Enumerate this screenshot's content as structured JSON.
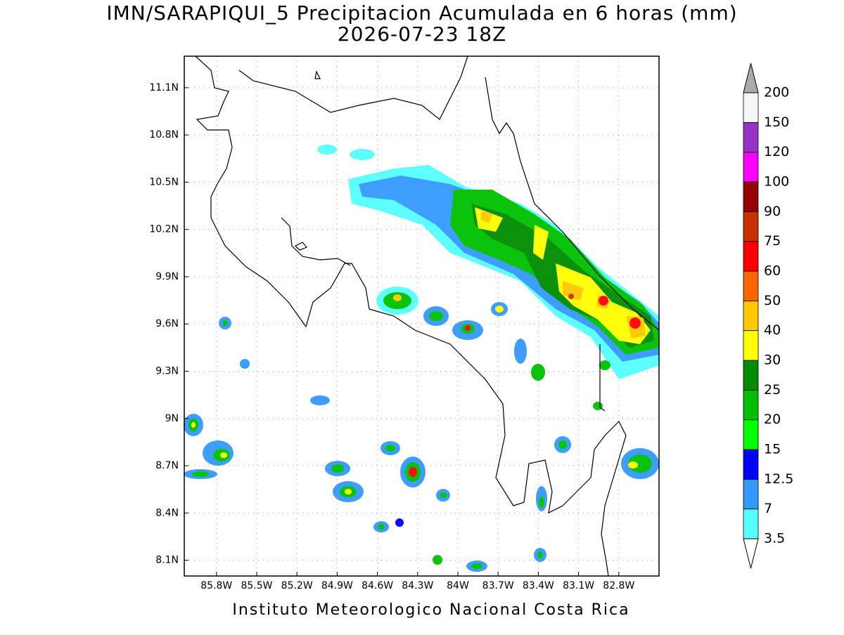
{
  "chart_data": {
    "type": "map",
    "title": "IMN/SARAPIQUI_5 Precipitacion Acumulada en 6 horas (mm)",
    "subtitle": "2026-07-23 18Z",
    "footer": "Instituto Meteorologico Nacional Costa Rica",
    "xlim": [
      -86.04,
      -82.5
    ],
    "ylim": [
      8.0,
      11.3
    ],
    "grid": true,
    "xticks": [
      {
        "value": -85.8,
        "label": "85.8W"
      },
      {
        "value": -85.5,
        "label": "85.5W"
      },
      {
        "value": -85.2,
        "label": "85.2W"
      },
      {
        "value": -84.9,
        "label": "84.9W"
      },
      {
        "value": -84.6,
        "label": "84.6W"
      },
      {
        "value": -84.3,
        "label": "84.3W"
      },
      {
        "value": -84.0,
        "label": "84W"
      },
      {
        "value": -83.7,
        "label": "83.7W"
      },
      {
        "value": -83.4,
        "label": "83.4W"
      },
      {
        "value": -83.1,
        "label": "83.1W"
      },
      {
        "value": -82.8,
        "label": "82.8W"
      }
    ],
    "yticks": [
      {
        "value": 8.1,
        "label": "8.1N"
      },
      {
        "value": 8.4,
        "label": "8.4N"
      },
      {
        "value": 8.7,
        "label": "8.7N"
      },
      {
        "value": 9.0,
        "label": "9N"
      },
      {
        "value": 9.3,
        "label": "9.3N"
      },
      {
        "value": 9.6,
        "label": "9.6N"
      },
      {
        "value": 9.9,
        "label": "9.9N"
      },
      {
        "value": 10.2,
        "label": "10.2N"
      },
      {
        "value": 10.5,
        "label": "10.5N"
      },
      {
        "value": 10.8,
        "label": "10.8N"
      },
      {
        "value": 11.1,
        "label": "11.1N"
      }
    ],
    "colorbar": {
      "levels": [
        3.5,
        7,
        12.5,
        15,
        20,
        25,
        30,
        40,
        50,
        60,
        75,
        90,
        100,
        120,
        150,
        200
      ],
      "colors": [
        "#55ffff",
        "#3399ff",
        "#0000ff",
        "#00ff00",
        "#00c000",
        "#008c00",
        "#ffff00",
        "#ffc800",
        "#ff6400",
        "#ff0000",
        "#c83200",
        "#960000",
        "#ff00ff",
        "#9632c8",
        "#f5f5f5"
      ],
      "under_color": "#ffffff",
      "over_color": "#aaaaaa"
    }
  }
}
